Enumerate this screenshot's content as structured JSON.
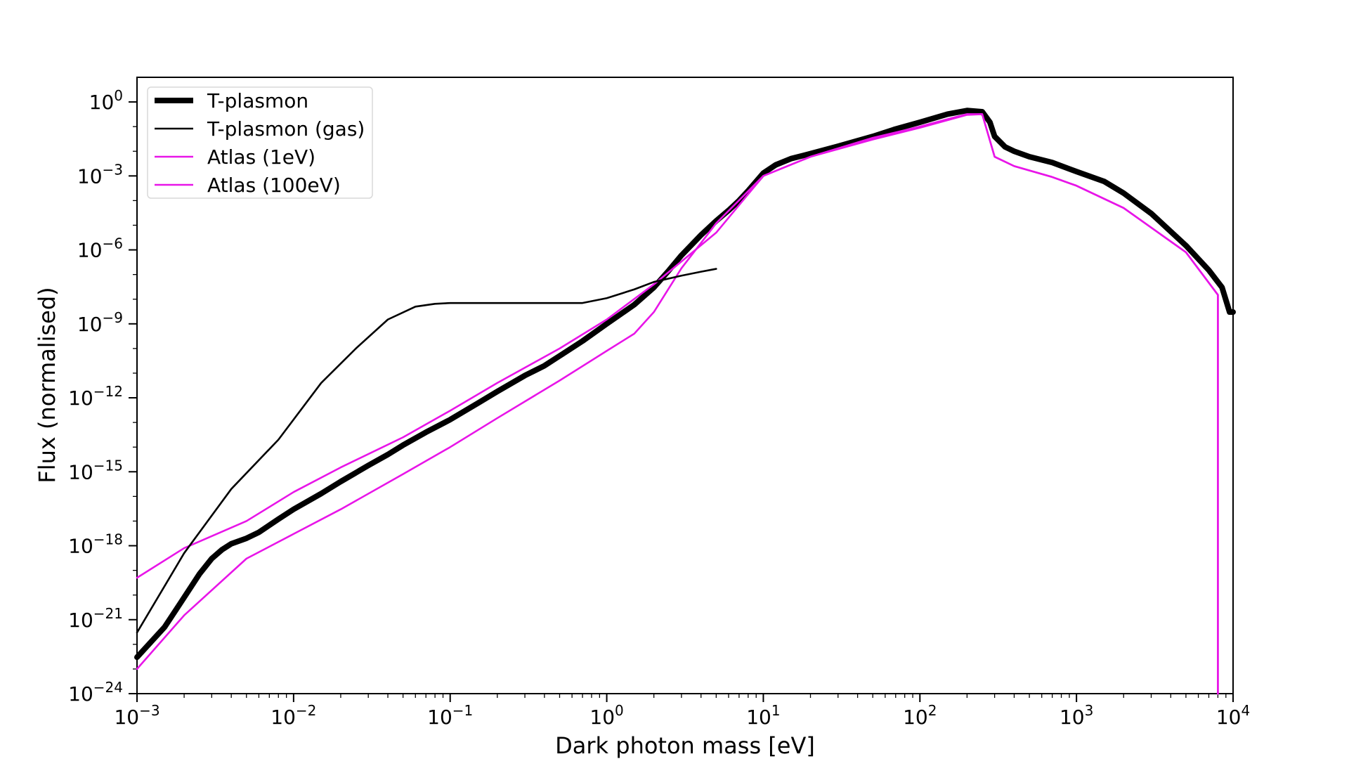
{
  "chart_data": {
    "type": "line",
    "title": "",
    "xlabel": "Dark photon mass [eV]",
    "ylabel": "Flux (normalised)",
    "xscale": "log",
    "yscale": "log",
    "xlim": [
      0.001,
      10000
    ],
    "ylim": [
      1e-24,
      10
    ],
    "x_ticks": [
      {
        "value": 0.001,
        "base": "10",
        "exp": "−3"
      },
      {
        "value": 0.01,
        "base": "10",
        "exp": "−2"
      },
      {
        "value": 0.1,
        "base": "10",
        "exp": "−1"
      },
      {
        "value": 1,
        "base": "10",
        "exp": "0"
      },
      {
        "value": 10,
        "base": "10",
        "exp": "1"
      },
      {
        "value": 100,
        "base": "10",
        "exp": "2"
      },
      {
        "value": 1000,
        "base": "10",
        "exp": "3"
      },
      {
        "value": 10000,
        "base": "10",
        "exp": "4"
      }
    ],
    "y_ticks": [
      {
        "value": 1,
        "base": "10",
        "exp": "0"
      },
      {
        "value": 0.001,
        "base": "10",
        "exp": "−3"
      },
      {
        "value": 1e-06,
        "base": "10",
        "exp": "−6"
      },
      {
        "value": 1e-09,
        "base": "10",
        "exp": "−9"
      },
      {
        "value": 1e-12,
        "base": "10",
        "exp": "−12"
      },
      {
        "value": 1e-15,
        "base": "10",
        "exp": "−15"
      },
      {
        "value": 1e-18,
        "base": "10",
        "exp": "−18"
      },
      {
        "value": 1e-21,
        "base": "10",
        "exp": "−21"
      },
      {
        "value": 1e-24,
        "base": "10",
        "exp": "−24"
      }
    ],
    "legend_position": "top-left",
    "grid": false,
    "series": [
      {
        "name": "T-plasmon",
        "color": "#000000",
        "style": "thick",
        "points": [
          [
            0.001,
            3e-23
          ],
          [
            0.0015,
            5e-22
          ],
          [
            0.002,
            8e-21
          ],
          [
            0.0025,
            7e-20
          ],
          [
            0.003,
            3e-19
          ],
          [
            0.0035,
            7e-19
          ],
          [
            0.004,
            1.2e-18
          ],
          [
            0.005,
            2e-18
          ],
          [
            0.006,
            3.5e-18
          ],
          [
            0.008,
            1.2e-17
          ],
          [
            0.01,
            3e-17
          ],
          [
            0.015,
            1.3e-16
          ],
          [
            0.02,
            4e-16
          ],
          [
            0.03,
            1.8e-15
          ],
          [
            0.04,
            5e-15
          ],
          [
            0.05,
            1.2e-14
          ],
          [
            0.07,
            4e-14
          ],
          [
            0.1,
            1.3e-13
          ],
          [
            0.15,
            6e-13
          ],
          [
            0.2,
            1.8e-12
          ],
          [
            0.3,
            8e-12
          ],
          [
            0.4,
            2e-11
          ],
          [
            0.5,
            5e-11
          ],
          [
            0.7,
            2e-10
          ],
          [
            1.0,
            1e-09
          ],
          [
            1.5,
            6e-09
          ],
          [
            2.0,
            3e-08
          ],
          [
            2.5,
            1.5e-07
          ],
          [
            3.0,
            6e-07
          ],
          [
            4.0,
            4e-06
          ],
          [
            5.0,
            1.5e-05
          ],
          [
            6.0,
            4e-05
          ],
          [
            7.0,
            0.0001
          ],
          [
            8.0,
            0.00025
          ],
          [
            10,
            0.0013
          ],
          [
            12,
            0.0028
          ],
          [
            15,
            0.005
          ],
          [
            20,
            0.008
          ],
          [
            30,
            0.016
          ],
          [
            50,
            0.04
          ],
          [
            70,
            0.08
          ],
          [
            100,
            0.15
          ],
          [
            150,
            0.32
          ],
          [
            200,
            0.45
          ],
          [
            250,
            0.4
          ],
          [
            280,
            0.15
          ],
          [
            300,
            0.04
          ],
          [
            350,
            0.015
          ],
          [
            400,
            0.01
          ],
          [
            500,
            0.006
          ],
          [
            700,
            0.0035
          ],
          [
            1000,
            0.0015
          ],
          [
            1500,
            0.0006
          ],
          [
            2000,
            0.0002
          ],
          [
            3000,
            3e-05
          ],
          [
            5000,
            1.5e-06
          ],
          [
            7000,
            1.5e-07
          ],
          [
            8500,
            3e-08
          ],
          [
            9500,
            3e-09
          ],
          [
            10000,
            3e-09
          ]
        ]
      },
      {
        "name": "T-plasmon (gas)",
        "color": "#000000",
        "style": "thin",
        "points": [
          [
            0.001,
            3e-22
          ],
          [
            0.002,
            5e-19
          ],
          [
            0.004,
            2e-16
          ],
          [
            0.008,
            2e-14
          ],
          [
            0.015,
            4e-12
          ],
          [
            0.025,
            1e-10
          ],
          [
            0.04,
            1.5e-09
          ],
          [
            0.06,
            5e-09
          ],
          [
            0.08,
            6.5e-09
          ],
          [
            0.1,
            7e-09
          ],
          [
            0.3,
            7e-09
          ],
          [
            0.7,
            7e-09
          ],
          [
            1.0,
            1.1e-08
          ],
          [
            1.5,
            2.5e-08
          ],
          [
            2.0,
            5e-08
          ],
          [
            3.0,
            9e-08
          ],
          [
            4.0,
            1.3e-07
          ],
          [
            5.0,
            1.7e-07
          ]
        ]
      },
      {
        "name": "Atlas (1eV)",
        "color": "#e815e8",
        "style": "thin",
        "points": [
          [
            0.001,
            5e-20
          ],
          [
            0.002,
            8e-19
          ],
          [
            0.005,
            1e-17
          ],
          [
            0.01,
            1.5e-16
          ],
          [
            0.02,
            1.5e-15
          ],
          [
            0.05,
            2.5e-14
          ],
          [
            0.1,
            3e-13
          ],
          [
            0.2,
            4e-12
          ],
          [
            0.5,
            1e-10
          ],
          [
            1.0,
            1.5e-09
          ],
          [
            2.0,
            4e-08
          ],
          [
            5.0,
            5e-06
          ],
          [
            10,
            0.001
          ],
          [
            20,
            0.006
          ],
          [
            50,
            0.035
          ],
          [
            100,
            0.1
          ],
          [
            150,
            0.2
          ],
          [
            200,
            0.32
          ],
          [
            250,
            0.32
          ],
          [
            300,
            0.006
          ],
          [
            400,
            0.0025
          ],
          [
            700,
            0.0009
          ],
          [
            1000,
            0.0004
          ],
          [
            2000,
            5e-05
          ],
          [
            5000,
            8e-07
          ],
          [
            8000,
            1.5e-08
          ],
          [
            8000,
            1e-24
          ]
        ]
      },
      {
        "name": "Atlas (100eV)",
        "color": "#e815e8",
        "style": "thin",
        "points": [
          [
            0.001,
            1e-23
          ],
          [
            0.002,
            1.5e-21
          ],
          [
            0.005,
            3e-19
          ],
          [
            0.01,
            3e-18
          ],
          [
            0.02,
            3e-17
          ],
          [
            0.05,
            8e-16
          ],
          [
            0.1,
            1e-14
          ],
          [
            0.2,
            1.5e-13
          ],
          [
            0.5,
            5e-12
          ],
          [
            1.0,
            8e-11
          ],
          [
            1.5,
            4e-10
          ],
          [
            2.0,
            3e-09
          ],
          [
            3.0,
            1.8e-07
          ],
          [
            5.0,
            1.2e-05
          ],
          [
            10,
            0.001
          ],
          [
            20,
            0.006
          ],
          [
            50,
            0.03
          ],
          [
            100,
            0.09
          ],
          [
            200,
            0.3
          ],
          [
            250,
            0.32
          ],
          [
            300,
            0.006
          ],
          [
            400,
            0.0025
          ],
          [
            700,
            0.0009
          ],
          [
            1000,
            0.0004
          ],
          [
            2000,
            5e-05
          ],
          [
            5000,
            8e-07
          ],
          [
            8000,
            1.5e-08
          ],
          [
            8000,
            1e-24
          ]
        ]
      }
    ]
  }
}
